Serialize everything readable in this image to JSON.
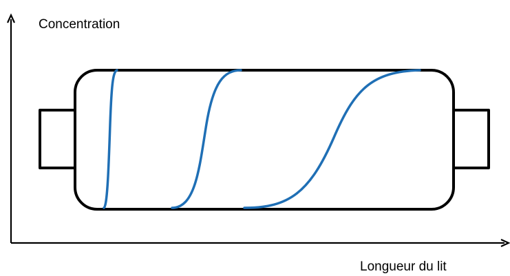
{
  "axes": {
    "y_label": "Concentration",
    "x_label": "Longueur du lit"
  },
  "colors": {
    "outline": "#000000",
    "front": "#1f6fb5",
    "background": "#ffffff"
  }
}
